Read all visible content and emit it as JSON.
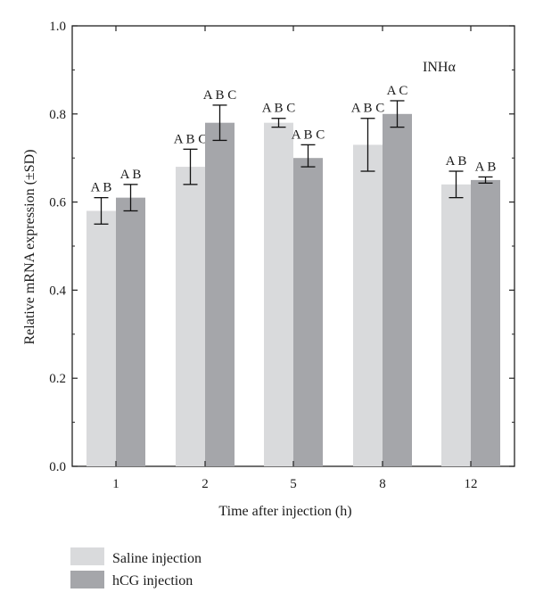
{
  "chart_data": {
    "type": "bar",
    "panel_label": "INHα",
    "xlabel": "Time after injection (h)",
    "ylabel": "Relative mRNA expression (±SD)",
    "ylim": [
      0.0,
      1.0
    ],
    "yticks": [
      "0.0",
      "0.2",
      "0.4",
      "0.6",
      "0.8",
      "1.0"
    ],
    "ytick_values": [
      0.0,
      0.2,
      0.4,
      0.6,
      0.8,
      1.0
    ],
    "categories": [
      "1",
      "2",
      "5",
      "8",
      "12"
    ],
    "series": [
      {
        "name": "Saline injection",
        "color": "#d9dadc",
        "values": [
          0.58,
          0.68,
          0.78,
          0.73,
          0.64
        ],
        "err_low": [
          0.55,
          0.64,
          0.77,
          0.67,
          0.61
        ],
        "err_high": [
          0.61,
          0.72,
          0.79,
          0.79,
          0.67
        ],
        "annotations": [
          "A B",
          "A B C",
          "A B C",
          "A B C",
          "A B"
        ]
      },
      {
        "name": "hCG injection",
        "color": "#a5a6aa",
        "values": [
          0.61,
          0.78,
          0.7,
          0.8,
          0.65
        ],
        "err_low": [
          0.58,
          0.74,
          0.68,
          0.77,
          0.643
        ],
        "err_high": [
          0.64,
          0.82,
          0.73,
          0.83,
          0.657
        ],
        "annotations": [
          "A B",
          "A B C",
          "A B C",
          "A C",
          "A B"
        ]
      }
    ],
    "legend_position": "bottom-left",
    "grid": false
  }
}
